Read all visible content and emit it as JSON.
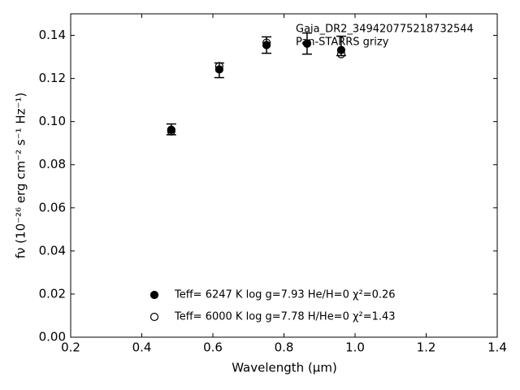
{
  "chart_data": {
    "type": "scatter",
    "xlabel": "Wavelength (μm)",
    "ylabel": "fν (10⁻²⁶ erg cm⁻² s⁻¹ Hz⁻¹)",
    "annotations": [
      "Gaia_DR2_349420775218732544",
      "Pan-STARRS grizy"
    ],
    "x": [
      0.483,
      0.618,
      0.751,
      0.865,
      0.961
    ],
    "series": [
      {
        "color": "#000000",
        "values": [
          0.0964,
          0.1238,
          0.1355,
          0.1362,
          0.1351
        ],
        "errors": [
          0.0025,
          0.0034,
          0.0038,
          0.0049,
          0.0045
        ],
        "marker": "errorbar"
      },
      {
        "name": "Teff=  6247 K  log g=7.93  He/H=0  χ²=0.26",
        "color": "#000000",
        "values": [
          0.0962,
          0.1242,
          0.1355,
          0.1362,
          0.1332
        ],
        "marker": "filled"
      },
      {
        "name": "Teff=  6000 K  log g=7.78  H/He=0  χ²=1.43",
        "color": "#000000",
        "values": [
          0.0955,
          0.1257,
          0.1366,
          0.1362,
          0.1313
        ],
        "marker": "open"
      }
    ],
    "xlim": [
      0.2,
      1.4
    ],
    "xticks": [
      0.2,
      0.4,
      0.6,
      0.8,
      {
        "value": 1,
        "label": "1.0"
      },
      1.2,
      1.4
    ],
    "ylim": [
      0,
      0.15
    ],
    "yticks": [
      {
        "value": 0,
        "label": "0.00"
      },
      0.02,
      0.04,
      0.06,
      0.08,
      {
        "value": 0.1,
        "label": "0.10"
      },
      0.12,
      0.14
    ],
    "legend": "lower center"
  }
}
